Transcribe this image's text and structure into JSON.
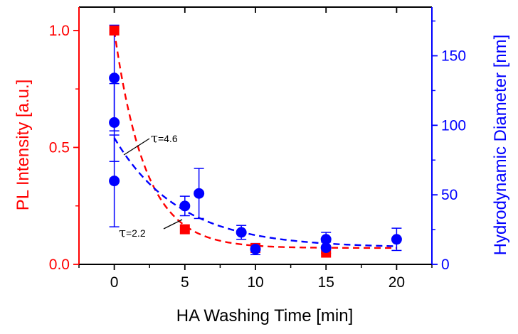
{
  "chart_data": {
    "type": "scatter",
    "xlabel": "HA Washing Time [min]",
    "ylabel_left": "PL Intensity [a.u.]",
    "ylabel_right": "Hydrodynamic Diameter [nm]",
    "xlim": [
      -2.5,
      22.5
    ],
    "ylim_left": [
      0,
      1.1
    ],
    "ylim_right": [
      0,
      185
    ],
    "x_ticks": [
      "0",
      "5",
      "10",
      "15",
      "20"
    ],
    "y_left_ticks": [
      "0.0",
      "0.5",
      "1.0"
    ],
    "y_right_ticks": [
      "0",
      "50",
      "100",
      "150"
    ],
    "grid": false,
    "colors": {
      "left": "#ff0000",
      "right": "#0000ff",
      "axis": "#000000"
    },
    "series": [
      {
        "axis": "left",
        "marker": "square",
        "color": "#ff0000",
        "points": [
          {
            "x": 0,
            "y": 1.0
          },
          {
            "x": 5,
            "y": 0.15
          },
          {
            "x": 10,
            "y": 0.07
          },
          {
            "x": 15,
            "y": 0.05
          }
        ]
      },
      {
        "axis": "right",
        "marker": "circle",
        "color": "#0000ff",
        "points": [
          {
            "x": 0,
            "y": 134,
            "err": 38
          },
          {
            "x": 0,
            "y": 102,
            "err": 28
          },
          {
            "x": 0,
            "y": 60,
            "err": 33
          },
          {
            "x": 5,
            "y": 42,
            "err": 7
          },
          {
            "x": 6,
            "y": 51,
            "err": 18
          },
          {
            "x": 9,
            "y": 23,
            "err": 5
          },
          {
            "x": 10,
            "y": 11,
            "err": 4
          },
          {
            "x": 15,
            "y": 18,
            "err": 5
          },
          {
            "x": 15,
            "y": 12,
            "err": 4
          },
          {
            "x": 20,
            "y": 18,
            "err": 8
          }
        ]
      }
    ],
    "fits": [
      {
        "axis": "left",
        "color": "#ff0000",
        "y0": 1.0,
        "tau": 2.2,
        "offset": 0.07
      },
      {
        "axis": "right",
        "color": "#0000ff",
        "y0": 91,
        "tau": 4.6,
        "offset": 12
      }
    ],
    "annotations": [
      {
        "tau_symbol": "τ",
        "label": "=4.6",
        "points_to_fit": 1
      },
      {
        "tau_symbol": "τ",
        "label": "=2.2",
        "points_to_fit": 0
      }
    ]
  }
}
